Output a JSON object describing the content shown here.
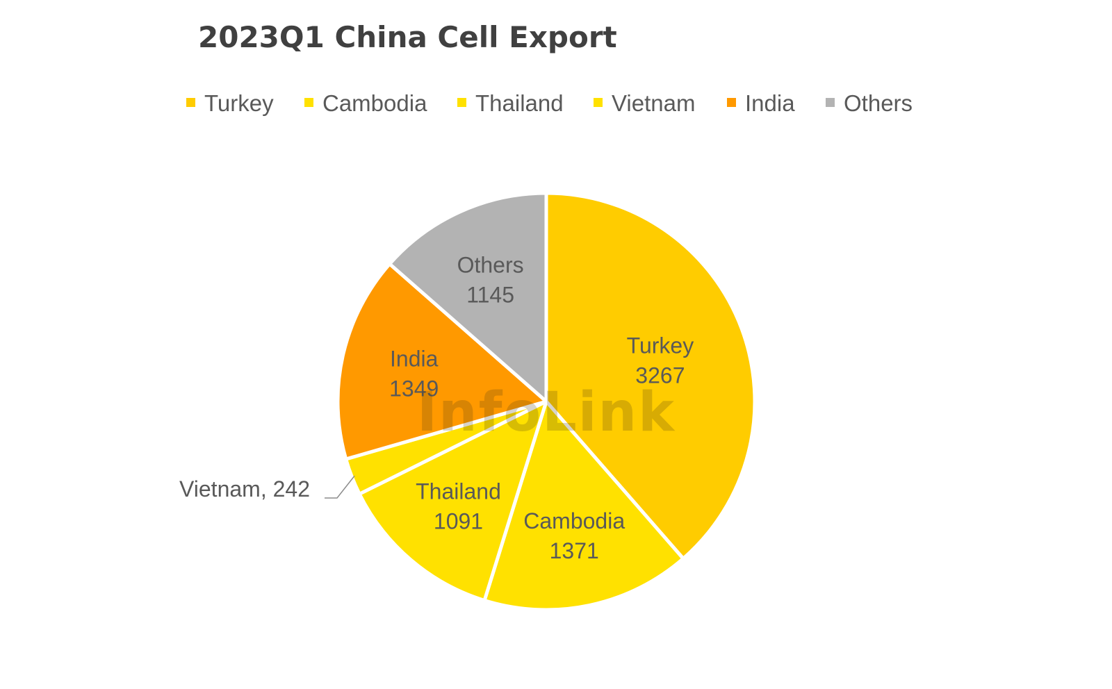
{
  "chart_data": {
    "type": "pie",
    "title": "2023Q1 China Cell Export",
    "legend_position": "top",
    "watermark": "InfoLink",
    "slices": [
      {
        "name": "Turkey",
        "value": 3267,
        "label_lines": [
          "Turkey",
          "3267"
        ],
        "color": "#FFCC00"
      },
      {
        "name": "Cambodia",
        "value": 1371,
        "label_lines": [
          "Cambodia",
          "1371"
        ],
        "color": "#FFE100"
      },
      {
        "name": "Thailand",
        "value": 1091,
        "label_lines": [
          "Thailand",
          "1091"
        ],
        "color": "#FFE100"
      },
      {
        "name": "Vietnam",
        "value": 242,
        "label_lines": [
          "Vietnam, 242"
        ],
        "color": "#FFE100"
      },
      {
        "name": "India",
        "value": 1349,
        "label_lines": [
          "India",
          "1349"
        ],
        "color": "#FF9900"
      },
      {
        "name": "Others",
        "value": 1145,
        "label_lines": [
          "Others",
          "1145"
        ],
        "color": "#B3B3B3"
      }
    ]
  }
}
